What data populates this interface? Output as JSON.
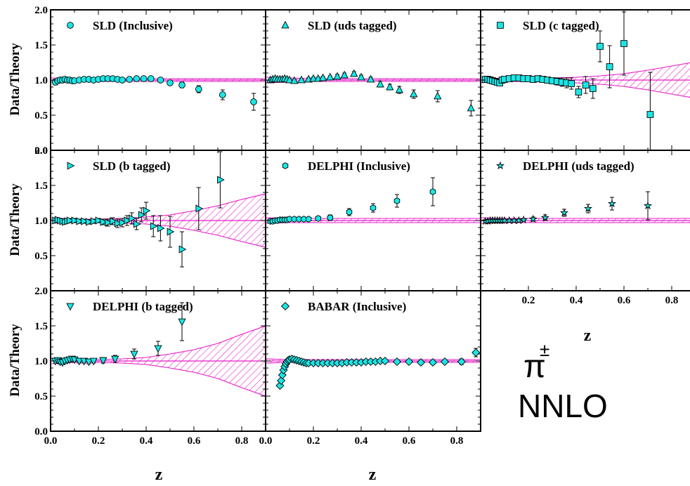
{
  "figure": {
    "ylabel": "Data/Theory",
    "xlabel": "z",
    "particle": "π",
    "particle_sup": "±",
    "order": "NNLO",
    "colors": {
      "marker": "#19e6e6",
      "band": "#e619c8",
      "axis": "#000000"
    }
  },
  "chart_data": [
    {
      "type": "scatter",
      "title": "SLD (Inclusive)",
      "marker": "circle",
      "xlim": [
        0,
        0.9
      ],
      "ylim": [
        0,
        2
      ],
      "yticks": [
        "0.0",
        "0.5",
        "1.0",
        "1.5",
        "2.0"
      ],
      "band": {
        "z": [
          0,
          0.1,
          0.2,
          0.3,
          0.4,
          0.5,
          0.6,
          0.7,
          0.8,
          0.9
        ],
        "half_width": [
          0.03,
          0.02,
          0.02,
          0.02,
          0.02,
          0.02,
          0.02,
          0.02,
          0.02,
          0.02
        ]
      },
      "x": [
        0.02,
        0.03,
        0.04,
        0.05,
        0.06,
        0.07,
        0.08,
        0.09,
        0.1,
        0.12,
        0.14,
        0.16,
        0.18,
        0.2,
        0.22,
        0.24,
        0.26,
        0.28,
        0.3,
        0.33,
        0.36,
        0.39,
        0.42,
        0.46,
        0.5,
        0.55,
        0.62,
        0.72,
        0.85
      ],
      "y": [
        0.97,
        0.99,
        1.0,
        1.0,
        1.01,
        1.0,
        1.0,
        0.99,
        0.99,
        1.0,
        1.01,
        1.01,
        1.0,
        1.01,
        1.02,
        1.02,
        1.02,
        1.01,
        1.0,
        1.01,
        1.02,
        1.02,
        1.02,
        1.0,
        0.96,
        0.93,
        0.87,
        0.79,
        0.69
      ],
      "err": [
        0.04,
        0.03,
        0.02,
        0.02,
        0.02,
        0.02,
        0.02,
        0.02,
        0.02,
        0.02,
        0.02,
        0.02,
        0.02,
        0.02,
        0.02,
        0.02,
        0.02,
        0.02,
        0.02,
        0.02,
        0.02,
        0.02,
        0.02,
        0.02,
        0.03,
        0.04,
        0.05,
        0.07,
        0.12
      ]
    },
    {
      "type": "scatter",
      "title": "SLD (uds tagged)",
      "marker": "triangle-up",
      "xlim": [
        0,
        0.9
      ],
      "ylim": [
        0,
        2
      ],
      "band": {
        "z": [
          0,
          0.1,
          0.2,
          0.3,
          0.4,
          0.5,
          0.6,
          0.7,
          0.8,
          0.9
        ],
        "half_width": [
          0.04,
          0.03,
          0.02,
          0.02,
          0.02,
          0.02,
          0.02,
          0.02,
          0.02,
          0.02
        ]
      },
      "x": [
        0.02,
        0.03,
        0.04,
        0.05,
        0.06,
        0.07,
        0.08,
        0.09,
        0.1,
        0.12,
        0.15,
        0.18,
        0.2,
        0.22,
        0.24,
        0.27,
        0.3,
        0.33,
        0.37,
        0.4,
        0.44,
        0.48,
        0.52,
        0.56,
        0.62,
        0.72,
        0.86
      ],
      "y": [
        1.0,
        1.01,
        1.02,
        1.01,
        1.01,
        1.01,
        1.02,
        1.01,
        1.0,
        0.99,
        1.0,
        1.01,
        1.02,
        1.02,
        1.03,
        1.04,
        1.05,
        1.07,
        1.09,
        1.04,
        1.01,
        0.94,
        0.9,
        0.86,
        0.8,
        0.77,
        0.6
      ],
      "err": [
        0.02,
        0.02,
        0.02,
        0.02,
        0.02,
        0.02,
        0.02,
        0.02,
        0.02,
        0.02,
        0.02,
        0.02,
        0.02,
        0.02,
        0.02,
        0.02,
        0.03,
        0.03,
        0.03,
        0.03,
        0.03,
        0.04,
        0.04,
        0.05,
        0.06,
        0.08,
        0.11
      ]
    },
    {
      "type": "scatter",
      "title": "SLD (c tagged)",
      "marker": "square",
      "xlim": [
        0,
        0.9
      ],
      "ylim": [
        0,
        2
      ],
      "band": {
        "z": [
          0,
          0.1,
          0.2,
          0.3,
          0.4,
          0.5,
          0.6,
          0.7,
          0.8,
          0.9
        ],
        "half_width": [
          0.04,
          0.02,
          0.02,
          0.03,
          0.04,
          0.06,
          0.09,
          0.14,
          0.2,
          0.26
        ]
      },
      "x": [
        0.02,
        0.03,
        0.04,
        0.05,
        0.06,
        0.07,
        0.08,
        0.09,
        0.1,
        0.12,
        0.14,
        0.16,
        0.18,
        0.2,
        0.22,
        0.24,
        0.26,
        0.28,
        0.3,
        0.32,
        0.34,
        0.36,
        0.38,
        0.41,
        0.44,
        0.47,
        0.5,
        0.54,
        0.6,
        0.71
      ],
      "y": [
        1.01,
        1.01,
        1.0,
        0.99,
        0.98,
        0.97,
        0.96,
        1.0,
        1.01,
        1.02,
        1.03,
        1.03,
        1.02,
        1.02,
        1.01,
        1.02,
        1.01,
        1.0,
        0.99,
        0.98,
        0.97,
        0.96,
        0.95,
        0.83,
        0.93,
        0.88,
        1.48,
        1.19,
        1.52,
        0.51
      ],
      "err": [
        0.03,
        0.03,
        0.03,
        0.03,
        0.03,
        0.03,
        0.03,
        0.03,
        0.03,
        0.03,
        0.03,
        0.03,
        0.03,
        0.03,
        0.03,
        0.03,
        0.03,
        0.04,
        0.04,
        0.05,
        0.06,
        0.07,
        0.08,
        0.08,
        0.12,
        0.14,
        0.22,
        0.3,
        0.45,
        0.6
      ]
    },
    {
      "type": "scatter",
      "title": "SLD (b tagged)",
      "marker": "triangle-right",
      "xlim": [
        0,
        0.9
      ],
      "ylim": [
        0,
        2
      ],
      "yticks": [
        "0.5",
        "1.0",
        "1.5",
        "2.0"
      ],
      "band": {
        "z": [
          0,
          0.1,
          0.2,
          0.3,
          0.4,
          0.5,
          0.6,
          0.7,
          0.8,
          0.9
        ],
        "half_width": [
          0.04,
          0.02,
          0.02,
          0.03,
          0.05,
          0.08,
          0.14,
          0.21,
          0.3,
          0.38
        ]
      },
      "x": [
        0.02,
        0.03,
        0.04,
        0.05,
        0.06,
        0.07,
        0.08,
        0.1,
        0.12,
        0.14,
        0.16,
        0.18,
        0.2,
        0.22,
        0.24,
        0.26,
        0.28,
        0.3,
        0.32,
        0.34,
        0.36,
        0.38,
        0.4,
        0.43,
        0.46,
        0.5,
        0.55,
        0.62,
        0.71
      ],
      "y": [
        1.0,
        1.01,
        1.0,
        0.99,
        0.98,
        0.99,
        1.0,
        1.0,
        0.99,
        0.99,
        0.98,
        0.99,
        1.0,
        0.98,
        0.97,
        0.99,
        0.96,
        0.97,
        1.0,
        1.03,
        0.95,
        1.08,
        1.14,
        0.92,
        0.89,
        0.84,
        0.59,
        1.17,
        1.58
      ],
      "err": [
        0.03,
        0.03,
        0.03,
        0.03,
        0.03,
        0.03,
        0.03,
        0.03,
        0.03,
        0.03,
        0.03,
        0.03,
        0.03,
        0.04,
        0.05,
        0.05,
        0.06,
        0.06,
        0.07,
        0.08,
        0.08,
        0.1,
        0.12,
        0.15,
        0.18,
        0.22,
        0.25,
        0.3,
        0.4
      ]
    },
    {
      "type": "scatter",
      "title": "DELPHI (Inclusive)",
      "marker": "hexagon",
      "xlim": [
        0,
        0.9
      ],
      "ylim": [
        0,
        2
      ],
      "band": {
        "z": [
          0,
          0.1,
          0.2,
          0.3,
          0.4,
          0.5,
          0.6,
          0.7,
          0.8,
          0.9
        ],
        "half_width": [
          0.04,
          0.03,
          0.03,
          0.03,
          0.03,
          0.03,
          0.03,
          0.03,
          0.03,
          0.03
        ]
      },
      "x": [
        0.02,
        0.03,
        0.04,
        0.05,
        0.06,
        0.07,
        0.08,
        0.09,
        0.1,
        0.12,
        0.14,
        0.16,
        0.18,
        0.22,
        0.27,
        0.35,
        0.45,
        0.55,
        0.7
      ],
      "y": [
        0.99,
        0.99,
        1.0,
        1.0,
        1.01,
        1.01,
        1.01,
        1.01,
        1.02,
        1.02,
        1.02,
        1.02,
        1.02,
        1.03,
        1.04,
        1.12,
        1.18,
        1.28,
        1.41
      ],
      "err": [
        0.02,
        0.02,
        0.02,
        0.02,
        0.02,
        0.02,
        0.02,
        0.02,
        0.02,
        0.02,
        0.02,
        0.02,
        0.02,
        0.03,
        0.04,
        0.05,
        0.06,
        0.09,
        0.2
      ]
    },
    {
      "type": "scatter",
      "title": "DELPHI (uds tagged)",
      "marker": "star",
      "xlim": [
        0,
        0.9
      ],
      "ylim": [
        0,
        2
      ],
      "xticks": [
        "0.2",
        "0.4",
        "0.6",
        "0.8"
      ],
      "band": {
        "z": [
          0,
          0.1,
          0.2,
          0.3,
          0.4,
          0.5,
          0.6,
          0.7,
          0.8,
          0.9
        ],
        "half_width": [
          0.04,
          0.03,
          0.03,
          0.03,
          0.03,
          0.03,
          0.03,
          0.03,
          0.03,
          0.03
        ]
      },
      "x": [
        0.02,
        0.03,
        0.04,
        0.05,
        0.06,
        0.07,
        0.08,
        0.09,
        0.1,
        0.12,
        0.14,
        0.16,
        0.18,
        0.22,
        0.27,
        0.35,
        0.45,
        0.55,
        0.7
      ],
      "y": [
        0.99,
        0.99,
        1.0,
        1.0,
        1.0,
        1.0,
        1.0,
        1.0,
        1.0,
        1.0,
        1.0,
        1.0,
        1.01,
        1.02,
        1.04,
        1.11,
        1.17,
        1.24,
        1.21
      ],
      "err": [
        0.02,
        0.02,
        0.02,
        0.02,
        0.02,
        0.02,
        0.02,
        0.02,
        0.02,
        0.02,
        0.02,
        0.02,
        0.02,
        0.03,
        0.04,
        0.05,
        0.06,
        0.09,
        0.2
      ]
    },
    {
      "type": "scatter",
      "title": "DELPHI (b tagged)",
      "marker": "triangle-down",
      "xlim": [
        0,
        0.9
      ],
      "ylim": [
        0,
        2
      ],
      "yticks": [
        "0.0",
        "0.5",
        "1.0",
        "1.5",
        "2.0"
      ],
      "xticks": [
        "0.0",
        "0.2",
        "0.4",
        "0.6",
        "0.8"
      ],
      "band": {
        "z": [
          0,
          0.1,
          0.2,
          0.3,
          0.4,
          0.5,
          0.6,
          0.7,
          0.8,
          0.9
        ],
        "half_width": [
          0.04,
          0.02,
          0.02,
          0.03,
          0.05,
          0.1,
          0.16,
          0.25,
          0.38,
          0.5
        ]
      },
      "x": [
        0.02,
        0.03,
        0.04,
        0.05,
        0.06,
        0.07,
        0.08,
        0.09,
        0.1,
        0.12,
        0.14,
        0.16,
        0.18,
        0.22,
        0.27,
        0.35,
        0.45,
        0.55
      ],
      "y": [
        1.0,
        1.01,
        0.99,
        0.98,
        1.0,
        1.01,
        1.02,
        1.03,
        1.02,
        1.0,
        1.0,
        0.99,
        1.0,
        1.01,
        1.03,
        1.1,
        1.18,
        1.56
      ],
      "err": [
        0.03,
        0.03,
        0.03,
        0.03,
        0.03,
        0.03,
        0.03,
        0.03,
        0.03,
        0.03,
        0.03,
        0.03,
        0.03,
        0.04,
        0.05,
        0.07,
        0.1,
        0.27
      ]
    },
    {
      "type": "scatter",
      "title": "BABAR (Inclusive)",
      "marker": "diamond",
      "xlim": [
        0,
        0.9
      ],
      "ylim": [
        0,
        2
      ],
      "xticks": [
        "0.0",
        "0.2",
        "0.4",
        "0.6",
        "0.8"
      ],
      "band": {
        "z": [
          0,
          0.1,
          0.2,
          0.3,
          0.4,
          0.5,
          0.6,
          0.7,
          0.8,
          0.9
        ],
        "half_width": [
          0.03,
          0.02,
          0.02,
          0.02,
          0.02,
          0.02,
          0.02,
          0.02,
          0.02,
          0.02
        ]
      },
      "x": [
        0.06,
        0.065,
        0.07,
        0.075,
        0.08,
        0.085,
        0.09,
        0.095,
        0.1,
        0.11,
        0.12,
        0.13,
        0.14,
        0.15,
        0.16,
        0.17,
        0.18,
        0.2,
        0.22,
        0.24,
        0.26,
        0.28,
        0.3,
        0.32,
        0.34,
        0.36,
        0.38,
        0.4,
        0.42,
        0.44,
        0.46,
        0.48,
        0.5,
        0.55,
        0.6,
        0.65,
        0.7,
        0.75,
        0.82,
        0.88
      ],
      "y": [
        0.65,
        0.72,
        0.8,
        0.87,
        0.92,
        0.96,
        0.99,
        1.01,
        1.02,
        1.03,
        1.02,
        1.01,
        1.0,
        0.99,
        0.98,
        0.97,
        0.97,
        0.97,
        0.97,
        0.97,
        0.97,
        0.97,
        0.97,
        0.97,
        0.98,
        0.98,
        0.98,
        0.98,
        0.99,
        0.99,
        0.99,
        1.0,
        1.0,
        0.99,
        0.99,
        0.98,
        0.98,
        0.99,
        0.99,
        1.12
      ],
      "err": [
        0.02,
        0.02,
        0.02,
        0.02,
        0.02,
        0.02,
        0.02,
        0.02,
        0.02,
        0.02,
        0.02,
        0.02,
        0.02,
        0.02,
        0.02,
        0.02,
        0.02,
        0.02,
        0.02,
        0.02,
        0.02,
        0.02,
        0.02,
        0.02,
        0.02,
        0.02,
        0.02,
        0.02,
        0.02,
        0.02,
        0.02,
        0.02,
        0.02,
        0.02,
        0.02,
        0.03,
        0.03,
        0.03,
        0.04,
        0.06
      ]
    }
  ]
}
